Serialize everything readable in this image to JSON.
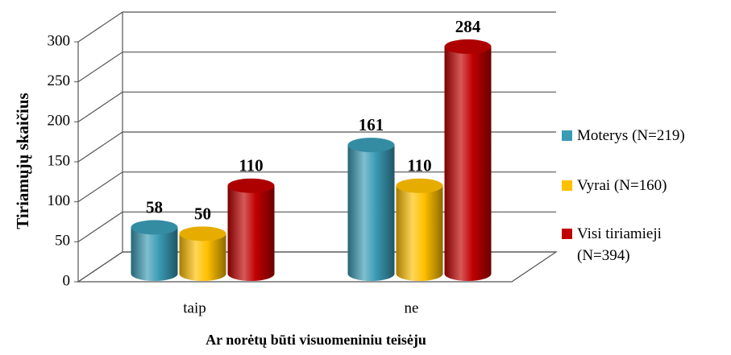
{
  "chart_data": {
    "type": "bar3d",
    "categories": [
      "taip",
      "ne"
    ],
    "series": [
      {
        "name": "Moterys (N=219)",
        "color": "#3a9bb5",
        "values": [
          58,
          161
        ]
      },
      {
        "name": "Vyrai (N=160)",
        "color": "#ffc000",
        "values": [
          50,
          110
        ]
      },
      {
        "name": "Visi tiriamieji (N=394)",
        "color": "#c00000",
        "values": [
          110,
          284
        ]
      }
    ],
    "ylim": [
      0,
      300
    ],
    "yticks": [
      0,
      50,
      100,
      150,
      200,
      250,
      300
    ],
    "ylabel": "Tiriamųjų skaičius",
    "xlabel": "Ar norėtų būti visuomeniniu teisėju",
    "grid": true
  }
}
